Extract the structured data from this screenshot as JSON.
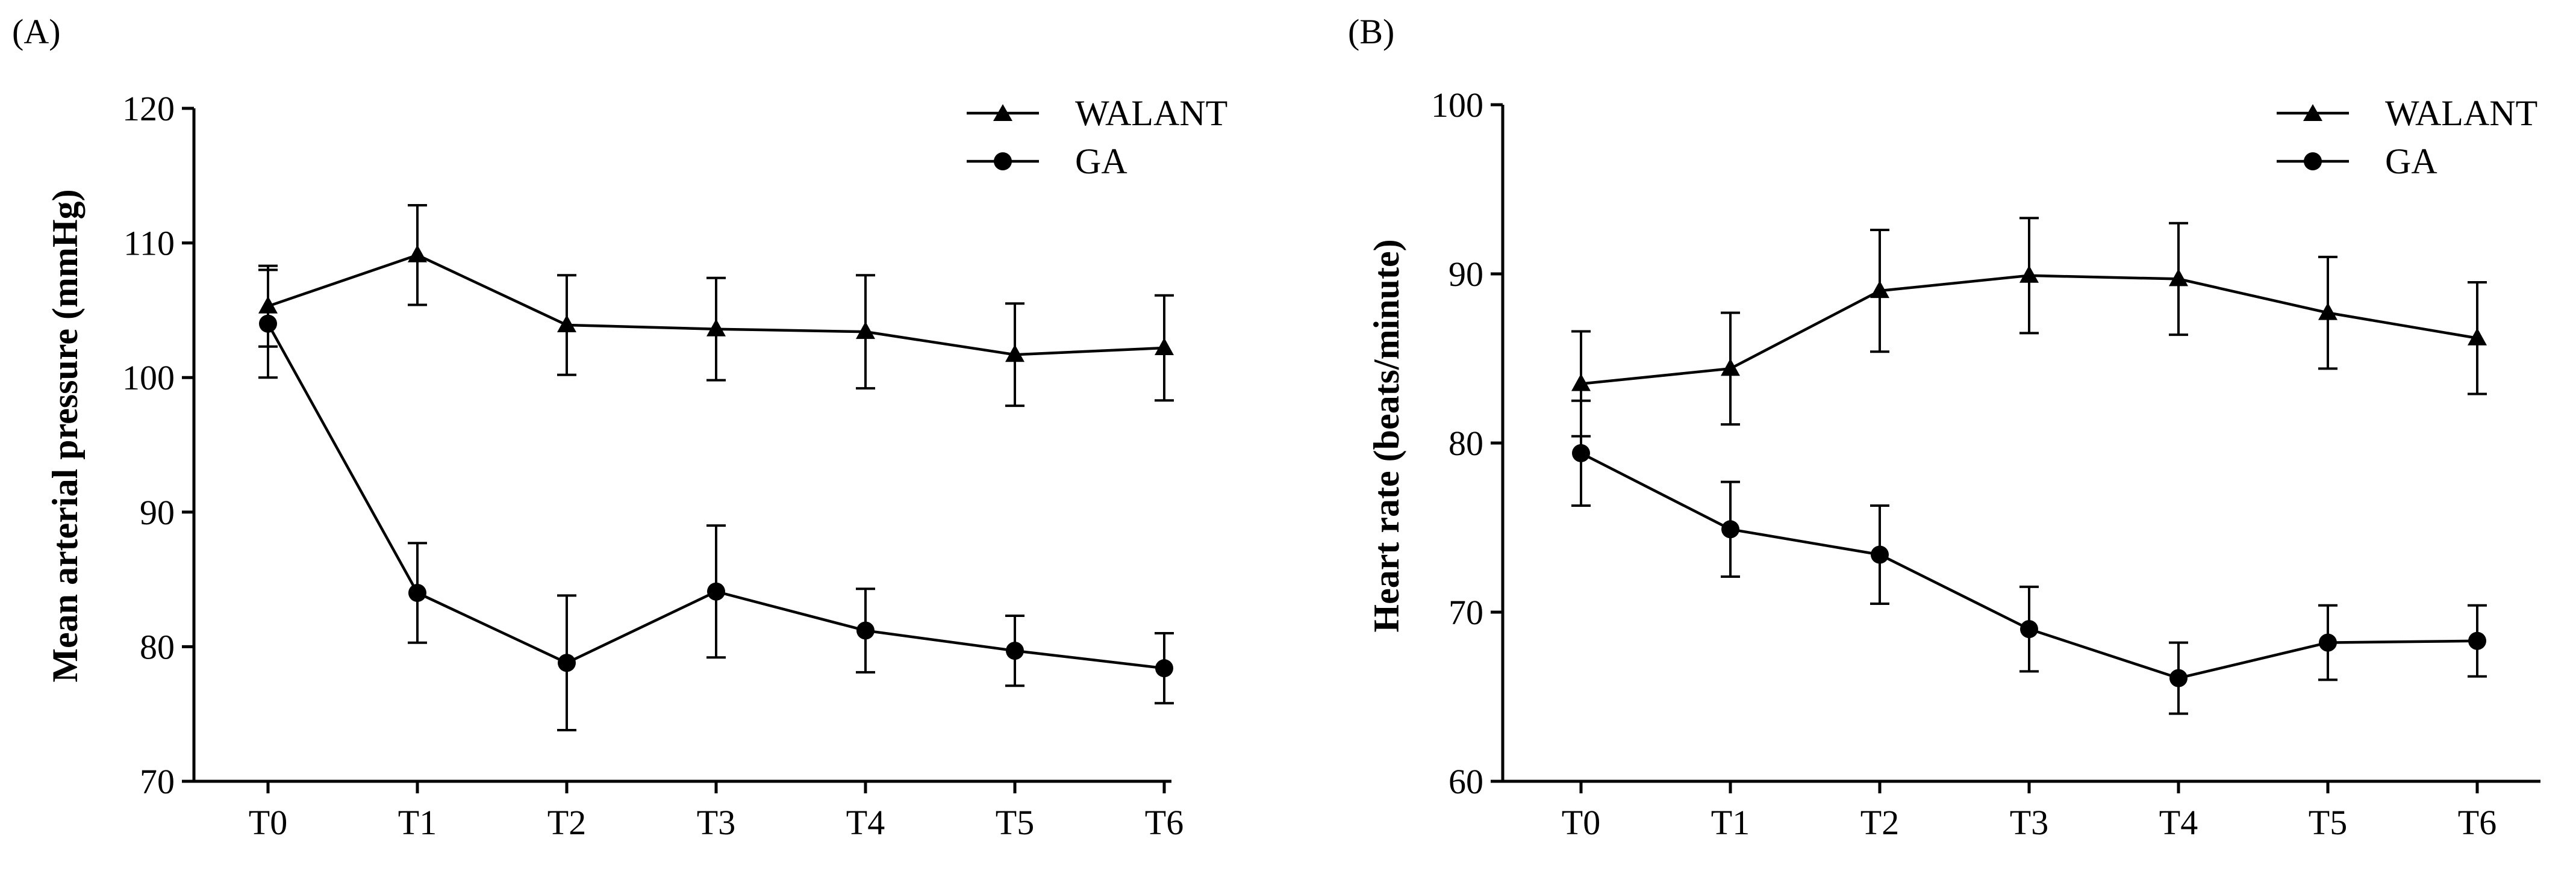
{
  "chart_data": [
    {
      "panel_label": "(A)",
      "type": "line",
      "xlabel": "",
      "ylabel": "Mean arterial pressure (mmHg)",
      "categories": [
        "T0",
        "T1",
        "T2",
        "T3",
        "T4",
        "T5",
        "T6"
      ],
      "ylim": [
        70,
        120
      ],
      "yticks": [
        "70",
        "80",
        "90",
        "100",
        "110",
        "120"
      ],
      "legend_position": "top-right",
      "grid": false,
      "series": [
        {
          "name": "WALANT",
          "marker": "triangle",
          "values": [
            105.3,
            109.1,
            103.9,
            103.6,
            103.4,
            101.7,
            102.2
          ],
          "error": [
            3.0,
            3.7,
            3.7,
            3.8,
            4.2,
            3.8,
            3.9
          ]
        },
        {
          "name": "GA",
          "marker": "circle",
          "values": [
            104.0,
            84.0,
            78.8,
            84.1,
            81.2,
            79.7,
            78.4
          ],
          "error": [
            4.0,
            3.7,
            5.0,
            4.9,
            3.1,
            2.6,
            2.6
          ]
        }
      ]
    },
    {
      "panel_label": "(B)",
      "type": "line",
      "xlabel": "",
      "ylabel": "Heart rate (beats/minute)",
      "categories": [
        "T0",
        "T1",
        "T2",
        "T3",
        "T4",
        "T5",
        "T6"
      ],
      "ylim": [
        60,
        100
      ],
      "yticks": [
        "60",
        "70",
        "80",
        "90",
        "100"
      ],
      "legend_position": "top-right",
      "grid": false,
      "series": [
        {
          "name": "WALANT",
          "marker": "triangle",
          "values": [
            83.5,
            84.4,
            89.0,
            89.9,
            89.7,
            87.7,
            86.2
          ],
          "error": [
            3.1,
            3.3,
            3.6,
            3.4,
            3.3,
            3.3,
            3.3
          ]
        },
        {
          "name": "GA",
          "marker": "circle",
          "values": [
            79.4,
            74.9,
            73.4,
            69.0,
            66.1,
            68.2,
            68.3
          ],
          "error": [
            3.1,
            2.8,
            2.9,
            2.5,
            2.1,
            2.2,
            2.1
          ]
        }
      ]
    }
  ]
}
